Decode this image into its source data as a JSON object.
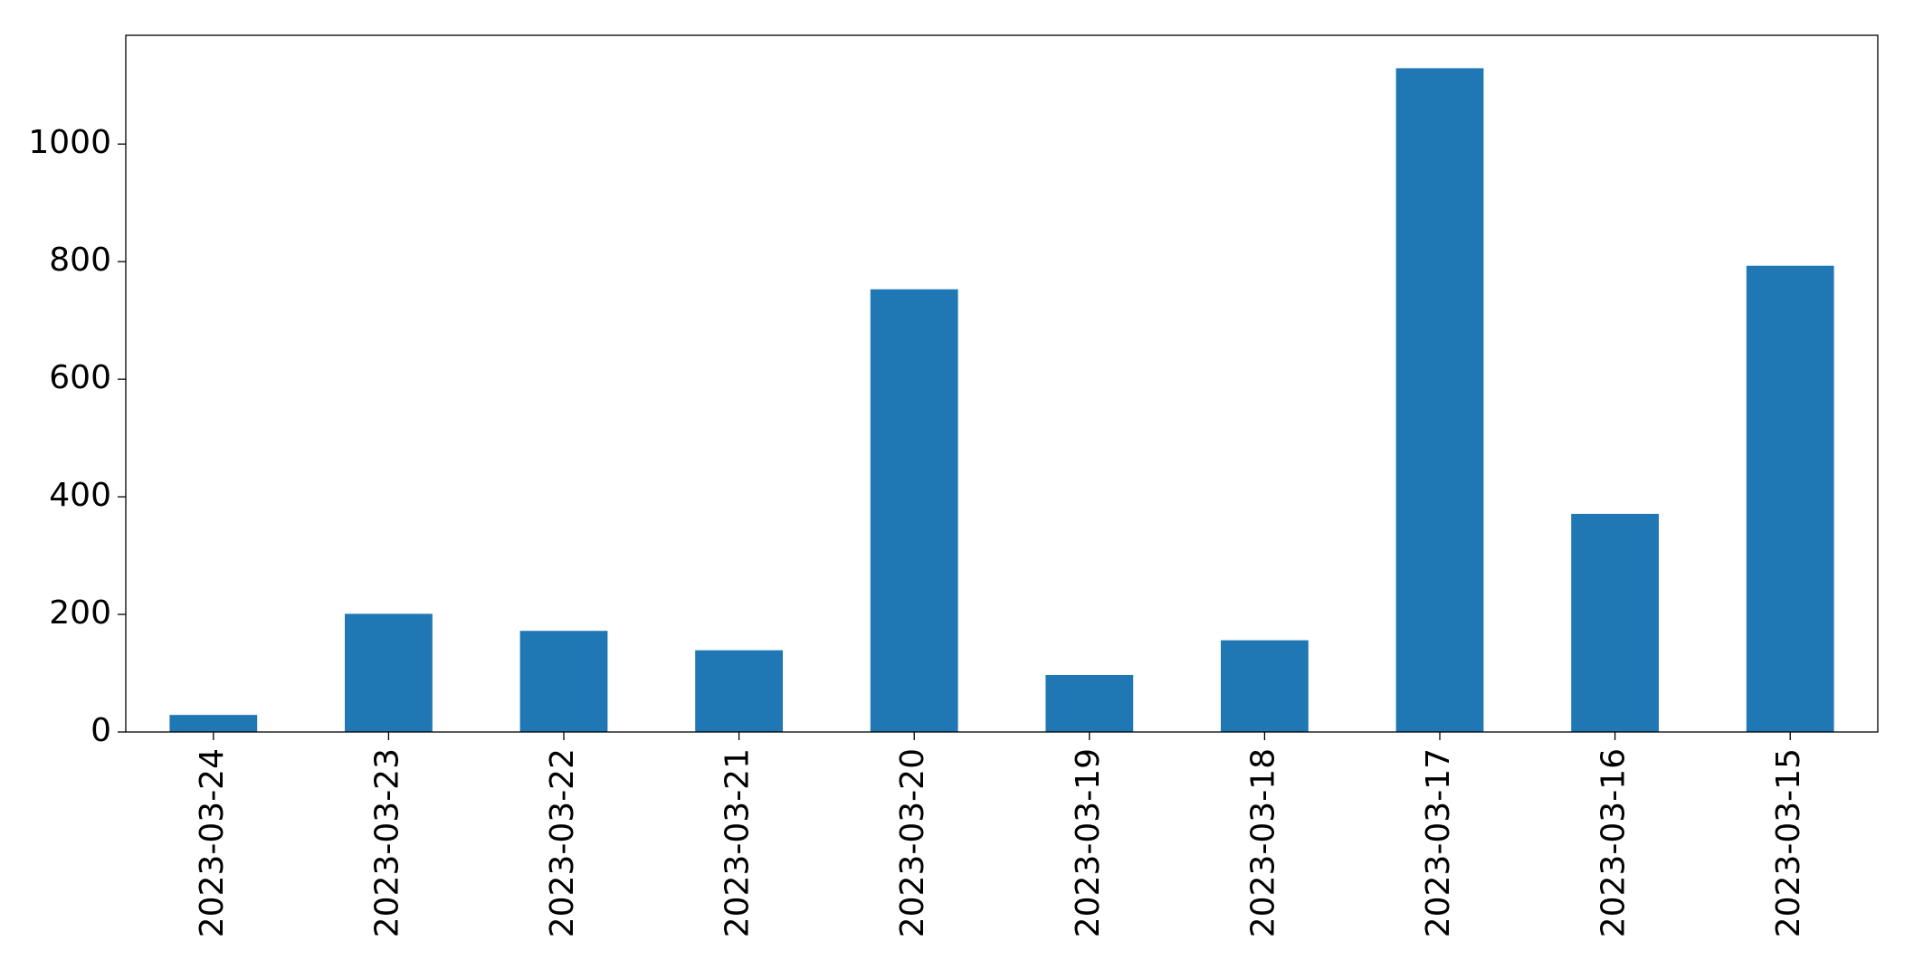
{
  "chart_data": {
    "type": "bar",
    "categories": [
      "2023-03-24",
      "2023-03-23",
      "2023-03-22",
      "2023-03-21",
      "2023-03-20",
      "2023-03-19",
      "2023-03-18",
      "2023-03-17",
      "2023-03-16",
      "2023-03-15"
    ],
    "values": [
      29,
      201,
      172,
      139,
      753,
      97,
      156,
      1129,
      371,
      793
    ],
    "color": "#1f77b4",
    "ylim": [
      0,
      1185
    ],
    "yticks": [
      0,
      200,
      400,
      600,
      800,
      1000
    ],
    "grid": false
  }
}
